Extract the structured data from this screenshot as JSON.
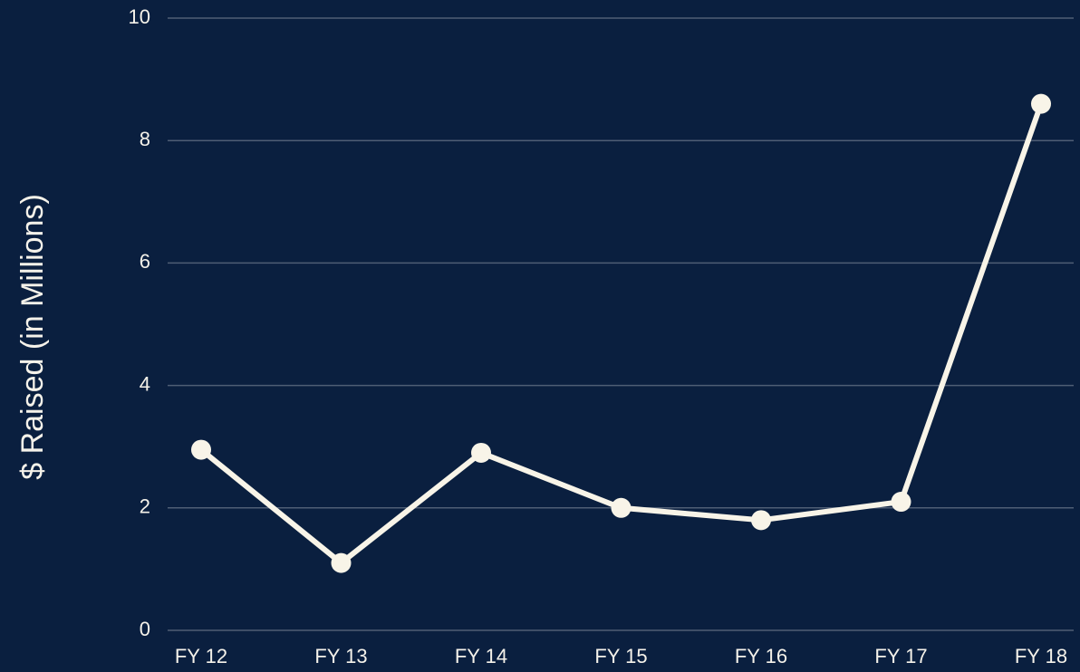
{
  "chart_data": {
    "type": "line",
    "y_label": "$ Raised (in Millions)",
    "categories": [
      "FY 12",
      "FY 13",
      "FY 14",
      "FY 15",
      "FY 16",
      "FY 17",
      "FY 18"
    ],
    "values": [
      2.95,
      1.1,
      2.9,
      2.0,
      1.8,
      2.1,
      8.6
    ],
    "color": "#f8f4e8",
    "ylim": [
      0,
      10
    ],
    "yticks": [
      0,
      2,
      4,
      6,
      8,
      10
    ],
    "grid": true
  }
}
